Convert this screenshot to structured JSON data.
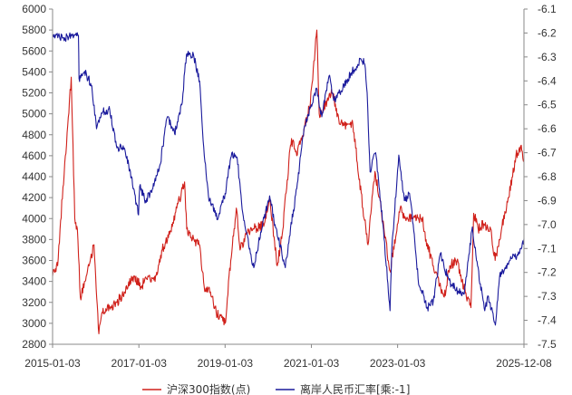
{
  "chart_data": {
    "type": "line",
    "title": "",
    "x_axis": {
      "range": [
        "2015-01-03",
        "2025-12-08"
      ],
      "tick_labels": [
        "2015-01-03",
        "2017-01-03",
        "2019-01-03",
        "2021-01-03",
        "2023-01-03",
        "2025-12-08"
      ],
      "tick_dates": [
        "2015-01-03",
        "2017-01-03",
        "2019-01-03",
        "2021-01-03",
        "2023-01-03",
        "2025-12-08"
      ]
    },
    "y_left": {
      "range": [
        2800,
        6000
      ],
      "tick_labels": [
        "6000",
        "5800",
        "5600",
        "5400",
        "5200",
        "5000",
        "4800",
        "4600",
        "4400",
        "4200",
        "4000",
        "3800",
        "3600",
        "3400",
        "3200",
        "3000",
        "2800"
      ]
    },
    "y_right": {
      "range": [
        -7.5,
        -6.1
      ],
      "tick_labels": [
        "-6.1",
        "-6.2",
        "-6.3",
        "-6.4",
        "-6.5",
        "-6.6",
        "-6.7",
        "-6.8",
        "-6.9",
        "-7.0",
        "-7.1",
        "-7.2",
        "-7.3",
        "-7.4",
        "-7.5"
      ]
    },
    "grid": false,
    "legend_position": "bottom-center",
    "series": [
      {
        "name": "沪深300指数(点)",
        "axis": "left",
        "color": "#d0201a",
        "points": [
          [
            "2015-01-03",
            3450
          ],
          [
            "2015-02-15",
            3550
          ],
          [
            "2015-04-01",
            4300
          ],
          [
            "2015-05-01",
            4700
          ],
          [
            "2015-06-10",
            5350
          ],
          [
            "2015-07-10",
            4000
          ],
          [
            "2015-08-01",
            3900
          ],
          [
            "2015-08-26",
            3250
          ],
          [
            "2015-10-15",
            3450
          ],
          [
            "2015-12-20",
            3750
          ],
          [
            "2016-01-30",
            2900
          ],
          [
            "2016-03-01",
            3100
          ],
          [
            "2016-05-01",
            3150
          ],
          [
            "2016-07-01",
            3200
          ],
          [
            "2016-09-01",
            3300
          ],
          [
            "2016-11-20",
            3450
          ],
          [
            "2017-01-20",
            3350
          ],
          [
            "2017-03-20",
            3450
          ],
          [
            "2017-05-20",
            3400
          ],
          [
            "2017-07-20",
            3700
          ],
          [
            "2017-09-20",
            3850
          ],
          [
            "2017-11-20",
            4100
          ],
          [
            "2018-01-25",
            4350
          ],
          [
            "2018-02-12",
            3900
          ],
          [
            "2018-04-01",
            3800
          ],
          [
            "2018-06-01",
            3750
          ],
          [
            "2018-07-10",
            3350
          ],
          [
            "2018-09-01",
            3300
          ],
          [
            "2018-10-20",
            3100
          ],
          [
            "2019-01-03",
            3000
          ],
          [
            "2019-02-20",
            3600
          ],
          [
            "2019-04-08",
            4100
          ],
          [
            "2019-05-10",
            3700
          ],
          [
            "2019-07-01",
            3850
          ],
          [
            "2019-09-01",
            3900
          ],
          [
            "2019-12-01",
            3950
          ],
          [
            "2020-01-15",
            4200
          ],
          [
            "2020-03-20",
            3550
          ],
          [
            "2020-05-01",
            3850
          ],
          [
            "2020-07-10",
            4700
          ],
          [
            "2020-08-01",
            4750
          ],
          [
            "2020-09-01",
            4600
          ],
          [
            "2020-11-01",
            4850
          ],
          [
            "2020-12-25",
            5100
          ],
          [
            "2021-02-18",
            5800
          ],
          [
            "2021-03-10",
            5000
          ],
          [
            "2021-05-01",
            5100
          ],
          [
            "2021-07-01",
            5200
          ],
          [
            "2021-09-01",
            4900
          ],
          [
            "2021-12-20",
            4900
          ],
          [
            "2022-03-15",
            4100
          ],
          [
            "2022-04-27",
            3750
          ],
          [
            "2022-06-25",
            4450
          ],
          [
            "2022-08-01",
            4200
          ],
          [
            "2022-10-31",
            3500
          ],
          [
            "2023-01-25",
            4100
          ],
          [
            "2023-03-01",
            4000
          ],
          [
            "2023-05-01",
            4000
          ],
          [
            "2023-07-31",
            4000
          ],
          [
            "2023-09-01",
            3800
          ],
          [
            "2023-11-01",
            3550
          ],
          [
            "2024-02-02",
            3250
          ],
          [
            "2024-03-20",
            3550
          ],
          [
            "2024-05-20",
            3600
          ],
          [
            "2024-07-01",
            3400
          ],
          [
            "2024-09-15",
            3150
          ],
          [
            "2024-10-08",
            4050
          ],
          [
            "2024-11-15",
            3900
          ],
          [
            "2025-01-01",
            3950
          ],
          [
            "2025-03-01",
            3900
          ],
          [
            "2025-04-08",
            3600
          ],
          [
            "2025-06-01",
            3900
          ],
          [
            "2025-08-01",
            4200
          ],
          [
            "2025-10-01",
            4600
          ],
          [
            "2025-11-15",
            4700
          ],
          [
            "2025-12-08",
            4550
          ]
        ]
      },
      {
        "name": "离岸人民币汇率[乘:-1]",
        "axis": "right",
        "color": "#1a1a9c",
        "points": [
          [
            "2015-01-03",
            -6.21
          ],
          [
            "2015-04-01",
            -6.22
          ],
          [
            "2015-08-10",
            -6.21
          ],
          [
            "2015-08-15",
            -6.39
          ],
          [
            "2015-10-01",
            -6.36
          ],
          [
            "2015-12-01",
            -6.42
          ],
          [
            "2016-01-10",
            -6.6
          ],
          [
            "2016-03-01",
            -6.53
          ],
          [
            "2016-05-01",
            -6.52
          ],
          [
            "2016-07-01",
            -6.68
          ],
          [
            "2016-09-01",
            -6.68
          ],
          [
            "2016-11-01",
            -6.8
          ],
          [
            "2016-12-31",
            -6.96
          ],
          [
            "2017-01-10",
            -6.84
          ],
          [
            "2017-03-01",
            -6.9
          ],
          [
            "2017-05-01",
            -6.85
          ],
          [
            "2017-07-01",
            -6.75
          ],
          [
            "2017-09-01",
            -6.55
          ],
          [
            "2017-11-01",
            -6.62
          ],
          [
            "2018-01-01",
            -6.5
          ],
          [
            "2018-02-10",
            -6.29
          ],
          [
            "2018-04-10",
            -6.29
          ],
          [
            "2018-06-01",
            -6.4
          ],
          [
            "2018-07-01",
            -6.65
          ],
          [
            "2018-08-15",
            -6.88
          ],
          [
            "2018-10-31",
            -6.98
          ],
          [
            "2018-12-10",
            -6.9
          ],
          [
            "2019-01-03",
            -6.87
          ],
          [
            "2019-03-01",
            -6.7
          ],
          [
            "2019-04-15",
            -6.72
          ],
          [
            "2019-06-01",
            -6.95
          ],
          [
            "2019-08-05",
            -7.12
          ],
          [
            "2019-09-03",
            -7.18
          ],
          [
            "2019-11-01",
            -7.03
          ],
          [
            "2020-01-15",
            -6.88
          ],
          [
            "2020-03-01",
            -7.0
          ],
          [
            "2020-05-27",
            -7.18
          ],
          [
            "2020-07-01",
            -7.05
          ],
          [
            "2020-09-01",
            -6.85
          ],
          [
            "2020-11-01",
            -6.6
          ],
          [
            "2021-01-01",
            -6.5
          ],
          [
            "2021-02-15",
            -6.43
          ],
          [
            "2021-04-01",
            -6.55
          ],
          [
            "2021-06-01",
            -6.38
          ],
          [
            "2021-07-15",
            -6.48
          ],
          [
            "2021-09-01",
            -6.45
          ],
          [
            "2021-12-01",
            -6.37
          ],
          [
            "2022-02-28",
            -6.31
          ],
          [
            "2022-03-31",
            -6.33
          ],
          [
            "2022-04-20",
            -6.45
          ],
          [
            "2022-05-15",
            -6.78
          ],
          [
            "2022-07-01",
            -6.7
          ],
          [
            "2022-09-01",
            -7.0
          ],
          [
            "2022-10-31",
            -7.36
          ],
          [
            "2022-11-15",
            -7.1
          ],
          [
            "2023-01-13",
            -6.71
          ],
          [
            "2023-03-01",
            -6.9
          ],
          [
            "2023-04-14",
            -6.87
          ],
          [
            "2023-05-15",
            -7.0
          ],
          [
            "2023-06-30",
            -7.25
          ],
          [
            "2023-08-15",
            -7.3
          ],
          [
            "2023-09-08",
            -7.35
          ],
          [
            "2023-11-01",
            -7.32
          ],
          [
            "2024-01-01",
            -7.12
          ],
          [
            "2024-02-01",
            -7.18
          ],
          [
            "2024-04-01",
            -7.25
          ],
          [
            "2024-06-01",
            -7.28
          ],
          [
            "2024-07-20",
            -7.29
          ],
          [
            "2024-09-27",
            -7.01
          ],
          [
            "2024-11-01",
            -7.15
          ],
          [
            "2025-01-10",
            -7.36
          ],
          [
            "2025-02-10",
            -7.3
          ],
          [
            "2025-04-10",
            -7.42
          ],
          [
            "2025-05-15",
            -7.22
          ],
          [
            "2025-07-01",
            -7.18
          ],
          [
            "2025-09-01",
            -7.14
          ],
          [
            "2025-11-01",
            -7.12
          ],
          [
            "2025-12-08",
            -7.06
          ]
        ]
      }
    ]
  }
}
